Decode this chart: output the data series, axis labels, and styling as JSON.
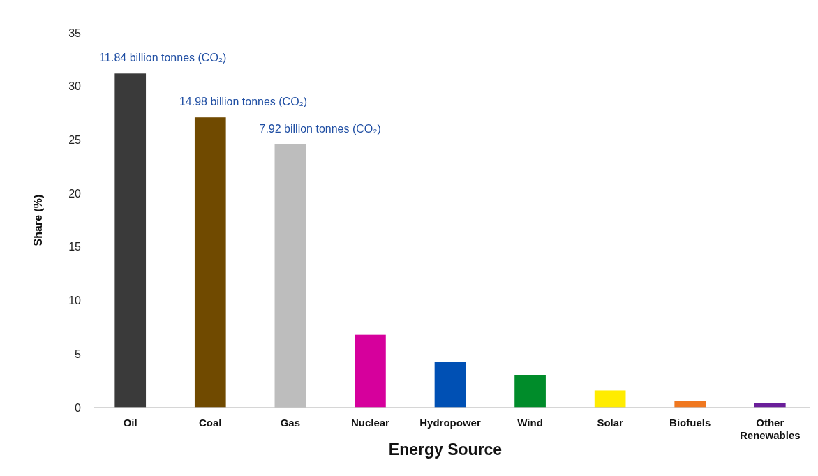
{
  "chart_data": {
    "type": "bar",
    "xlabel": "Energy Source",
    "ylabel": "Share (%)",
    "categories": [
      "Oil",
      "Coal",
      "Gas",
      "Nuclear",
      "Hydropower",
      "Wind",
      "Solar",
      "Biofuels",
      "Other Renewables"
    ],
    "values": [
      31.2,
      27.1,
      24.6,
      6.8,
      4.3,
      3.0,
      1.6,
      0.6,
      0.4
    ],
    "colors": [
      "#3a3a3a",
      "#704a00",
      "#bdbdbd",
      "#d6009c",
      "#0050b4",
      "#008c2a",
      "#ffec00",
      "#f07820",
      "#6a1e9a"
    ],
    "ylim": [
      0,
      35
    ],
    "yticks": [
      0,
      5,
      10,
      15,
      20,
      25,
      30,
      35
    ],
    "grid": false,
    "annotations": [
      {
        "text": "11.84 billion tonnes (CO₂)",
        "x": "Oil",
        "y": 31.2
      },
      {
        "text": "14.98 billion tonnes (CO₂)",
        "x": "Coal",
        "y": 27.1
      },
      {
        "text": "7.92 billion tonnes (CO₂)",
        "x": "Gas",
        "y": 24.6
      }
    ]
  }
}
